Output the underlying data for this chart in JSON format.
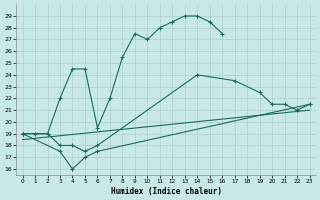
{
  "xlabel": "Humidex (Indice chaleur)",
  "bg_color": "#c8e8e8",
  "line_color": "#1a6b5a",
  "xlim": [
    -0.5,
    23.5
  ],
  "ylim": [
    15.5,
    30.0
  ],
  "xticks": [
    0,
    1,
    2,
    3,
    4,
    5,
    6,
    7,
    8,
    9,
    10,
    11,
    12,
    13,
    14,
    15,
    16,
    17,
    18,
    19,
    20,
    21,
    22,
    23
  ],
  "yticks": [
    16,
    17,
    18,
    19,
    20,
    21,
    22,
    23,
    24,
    25,
    26,
    27,
    28,
    29
  ],
  "curves": [
    {
      "x": [
        0,
        1,
        2,
        3,
        4,
        5,
        6,
        7,
        8,
        9,
        10,
        11,
        12,
        13,
        14,
        15,
        16
      ],
      "y": [
        19.0,
        19.0,
        19.0,
        22.0,
        24.5,
        24.5,
        19.5,
        22.0,
        25.5,
        27.5,
        27.0,
        28.0,
        28.5,
        29.0,
        29.0,
        28.5,
        27.5
      ],
      "marker": true
    },
    {
      "x": [
        0,
        2,
        3,
        4,
        5,
        6,
        14,
        17,
        19,
        20,
        21,
        22,
        23
      ],
      "y": [
        19.0,
        19.0,
        18.0,
        18.0,
        17.5,
        18.0,
        24.0,
        23.5,
        22.5,
        21.5,
        21.5,
        21.0,
        21.5
      ],
      "marker": true
    },
    {
      "x": [
        0,
        3,
        4,
        5,
        6,
        23
      ],
      "y": [
        19.0,
        17.5,
        16.0,
        17.0,
        17.5,
        21.5
      ],
      "marker": true
    },
    {
      "x": [
        0,
        23
      ],
      "y": [
        18.5,
        21.0
      ],
      "marker": false
    }
  ]
}
